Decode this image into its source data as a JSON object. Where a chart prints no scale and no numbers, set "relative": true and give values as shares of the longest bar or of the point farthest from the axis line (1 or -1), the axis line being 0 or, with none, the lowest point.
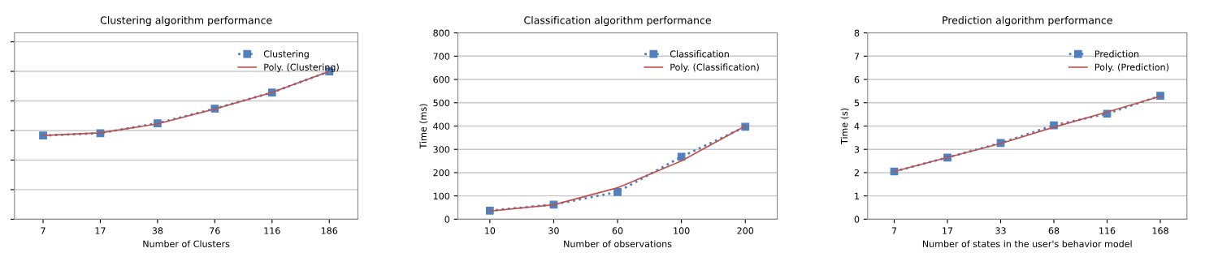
{
  "chart_data": [
    {
      "type": "line",
      "title": "Clustering algorithm performance",
      "xlabel": "Number of Clusters",
      "categories": [
        "7",
        "17",
        "38",
        "76",
        "116",
        "186"
      ],
      "relative": true,
      "grid": "y",
      "legend": "top right",
      "tick_labels": "x",
      "series": [
        {
          "name": "Clustering",
          "color": "#4f81bd",
          "values": [
            0.566,
            0.582,
            0.649,
            0.748,
            0.857,
            1.0
          ],
          "marker": "square",
          "line_style": "dotted"
        },
        {
          "name": "Poly. (Clustering)",
          "color": "#c0504d",
          "values": [
            0.566,
            0.584,
            0.645,
            0.745,
            0.858,
            1.0
          ],
          "marker": "none",
          "line_style": "solid"
        }
      ]
    },
    {
      "type": "line",
      "title": "Classification algorithm performance",
      "xlabel": "Number of observations",
      "ylabel": "Time (ms)",
      "categories": [
        "10",
        "30",
        "60",
        "100",
        "200"
      ],
      "ylim": [
        0,
        800
      ],
      "yticks": [
        0,
        100,
        200,
        300,
        400,
        500,
        600,
        700,
        800
      ],
      "grid": "y",
      "legend": "top right",
      "series": [
        {
          "name": "Classification",
          "color": "#4f81bd",
          "values": [
            37,
            63,
            117,
            268,
            397
          ],
          "marker": "square",
          "line_style": "dotted"
        },
        {
          "name": "Poly. (Classification)",
          "color": "#c0504d",
          "values": [
            35,
            62,
            135,
            250,
            400
          ],
          "marker": "none",
          "line_style": "solid"
        }
      ]
    },
    {
      "type": "line",
      "title": "Prediction algorithm performance",
      "xlabel": "Number of states in the user's behavior model",
      "ylabel": "Time (s)",
      "categories": [
        "7",
        "17",
        "33",
        "68",
        "116",
        "168"
      ],
      "ylim": [
        0,
        8
      ],
      "yticks": [
        0,
        1,
        2,
        3,
        4,
        5,
        6,
        7,
        8
      ],
      "grid": "y",
      "legend": "top right",
      "series": [
        {
          "name": "Prediction",
          "color": "#4f81bd",
          "values": [
            2.05,
            2.65,
            3.27,
            4.03,
            4.53,
            5.3
          ],
          "marker": "square",
          "line_style": "dotted"
        },
        {
          "name": "Poly. (Prediction)",
          "color": "#c0504d",
          "values": [
            2.05,
            2.65,
            3.25,
            3.95,
            4.6,
            5.28
          ],
          "marker": "none",
          "line_style": "solid"
        }
      ]
    }
  ]
}
